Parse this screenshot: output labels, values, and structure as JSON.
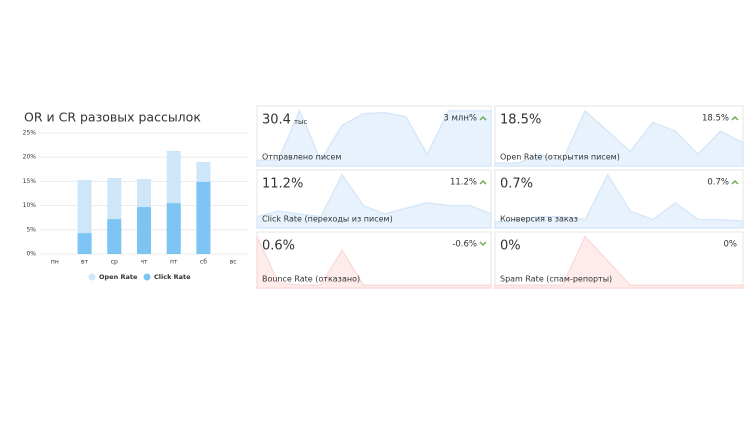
{
  "chart_data": {
    "type": "bar",
    "title": "OR и CR разовых рассылок",
    "categories": [
      "пн",
      "вт",
      "ср",
      "чт",
      "пт",
      "сб",
      "вс"
    ],
    "series": [
      {
        "name": "Open Rate",
        "color": "#cde6f9",
        "values": [
          null,
          15.3,
          15.7,
          15.5,
          21.3,
          19.0,
          null
        ]
      },
      {
        "name": "Click Rate",
        "color": "#7cc4f4",
        "values": [
          null,
          4.3,
          7.2,
          9.7,
          10.5,
          14.9,
          null
        ]
      }
    ],
    "ylim": [
      0,
      25
    ],
    "yticks": [
      {
        "value": 0,
        "label": "0%"
      },
      {
        "value": 5,
        "label": "5%"
      },
      {
        "value": 10,
        "label": "10%"
      },
      {
        "value": 15,
        "label": "15%"
      },
      {
        "value": 20,
        "label": "20%"
      },
      {
        "value": 25,
        "label": "25%"
      }
    ],
    "grid": true
  },
  "cards": [
    {
      "value": "30.4",
      "unit": "тыс",
      "delta": "3 млн%",
      "trend": "up",
      "label": "Отправлено писем",
      "color": "#e8f2fc",
      "spark": [
        10,
        10,
        95,
        10,
        70,
        90,
        92,
        85,
        20,
        95,
        95,
        95
      ]
    },
    {
      "value": "18.5%",
      "delta": "18.5%",
      "trend": "up",
      "label": "Open Rate (открытия писем)",
      "color": "#e8f2fc",
      "spark": [
        5,
        5,
        20,
        10,
        95,
        60,
        25,
        75,
        60,
        20,
        60,
        40
      ]
    },
    {
      "value": "11.2%",
      "delta": "11.2%",
      "trend": "up",
      "label": "Click Rate (переходы из писем)",
      "color": "#e8f2fc",
      "spark": [
        20,
        30,
        25,
        20,
        95,
        40,
        25,
        35,
        45,
        40,
        40,
        25
      ]
    },
    {
      "value": "0.7%",
      "delta": "0.7%",
      "trend": "up",
      "label": "Конверсия в заказ",
      "color": "#e8f2fc",
      "spark": [
        10,
        15,
        20,
        20,
        15,
        95,
        30,
        15,
        45,
        15,
        15,
        12
      ]
    },
    {
      "value": "0.6%",
      "delta": "-0.6%",
      "trend": "down",
      "label": "Bounce Rate (отказано)",
      "color": "#fdeceb",
      "spark": [
        95,
        10,
        5,
        5,
        70,
        5,
        5,
        5,
        5,
        5,
        5,
        5
      ]
    },
    {
      "value": "0%",
      "delta": "0%",
      "label": "Spam Rate (спам-репорты)",
      "color": "#fdeceb",
      "spark": [
        5,
        5,
        5,
        5,
        95,
        50,
        5,
        5,
        5,
        5,
        5,
        5
      ]
    }
  ]
}
